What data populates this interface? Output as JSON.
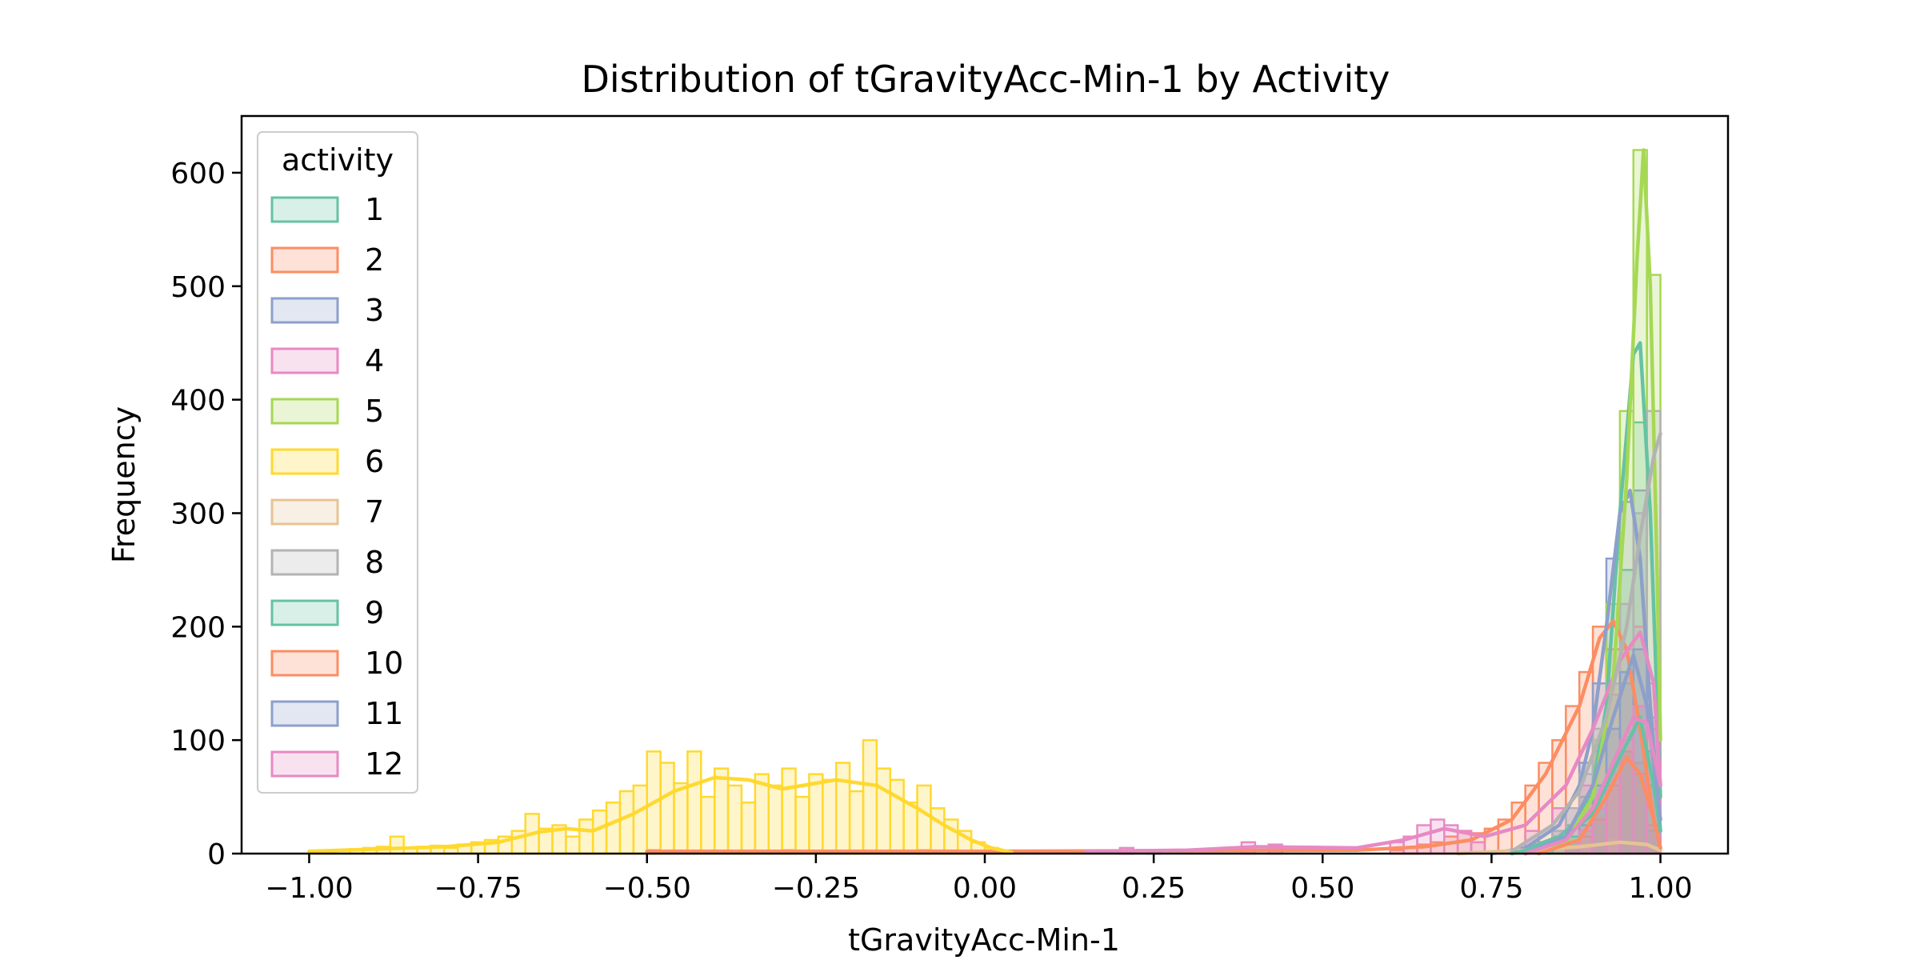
{
  "chart_data": {
    "type": "histogram",
    "title": "Distribution of tGravityAcc-Min-1 by Activity",
    "xlabel": "tGravityAcc-Min-1",
    "ylabel": "Frequency",
    "xlim": [
      -1.1,
      1.1
    ],
    "ylim": [
      0,
      650
    ],
    "xticks": [
      -1.0,
      -0.75,
      -0.5,
      -0.25,
      0.0,
      0.25,
      0.5,
      0.75,
      1.0
    ],
    "xtick_labels": [
      "−1.00",
      "−0.75",
      "−0.50",
      "−0.25",
      "0.00",
      "0.25",
      "0.50",
      "0.75",
      "1.00"
    ],
    "yticks": [
      0,
      100,
      200,
      300,
      400,
      500,
      600
    ],
    "ytick_labels": [
      "0",
      "100",
      "200",
      "300",
      "400",
      "500",
      "600"
    ],
    "element": "step",
    "kde": true,
    "bin_width": 0.02,
    "legend": {
      "title": "activity",
      "position": "upper-left",
      "entries": [
        "1",
        "2",
        "3",
        "4",
        "5",
        "6",
        "7",
        "8",
        "9",
        "10",
        "11",
        "12"
      ]
    },
    "series": [
      {
        "name": "1",
        "color": "#66c2a5",
        "bin_start": [
          0.78,
          0.8,
          0.82,
          0.84,
          0.86,
          0.88,
          0.9,
          0.92,
          0.94,
          0.96,
          0.98
        ],
        "counts": [
          2,
          5,
          10,
          15,
          25,
          50,
          90,
          150,
          250,
          380,
          120
        ],
        "kde": {
          "x": [
            0.75,
            0.8,
            0.85,
            0.88,
            0.9,
            0.92,
            0.94,
            0.96,
            0.97,
            0.985,
            1.0
          ],
          "y": [
            0,
            4,
            15,
            30,
            60,
            130,
            300,
            440,
            450,
            300,
            50
          ]
        }
      },
      {
        "name": "2",
        "color": "#fc8d62",
        "bin_start": [
          -0.5,
          -0.3,
          -0.1,
          0.6,
          0.62,
          0.64,
          0.66,
          0.68,
          0.7,
          0.72,
          0.74,
          0.76,
          0.78,
          0.8,
          0.82,
          0.84,
          0.86,
          0.88,
          0.9,
          0.92,
          0.94,
          0.96,
          0.98
        ],
        "counts": [
          3,
          3,
          3,
          3,
          5,
          8,
          10,
          15,
          20,
          18,
          22,
          30,
          45,
          60,
          80,
          100,
          130,
          160,
          200,
          180,
          150,
          80,
          20
        ],
        "kde": {
          "x": [
            -0.5,
            0.0,
            0.55,
            0.65,
            0.72,
            0.78,
            0.83,
            0.88,
            0.91,
            0.93,
            0.95,
            0.97,
            0.99,
            1.0
          ],
          "y": [
            2,
            2,
            3,
            6,
            12,
            30,
            70,
            130,
            190,
            205,
            180,
            110,
            30,
            5
          ]
        }
      },
      {
        "name": "3",
        "color": "#8da0cb",
        "bin_start": [
          0.8,
          0.82,
          0.84,
          0.86,
          0.88,
          0.9,
          0.92,
          0.94,
          0.96,
          0.98
        ],
        "counts": [
          5,
          10,
          20,
          40,
          80,
          150,
          260,
          310,
          320,
          120
        ],
        "kde": {
          "x": [
            0.75,
            0.8,
            0.85,
            0.88,
            0.9,
            0.92,
            0.94,
            0.955,
            0.97,
            0.985,
            1.0
          ],
          "y": [
            0,
            5,
            25,
            60,
            110,
            200,
            300,
            320,
            260,
            130,
            20
          ]
        }
      },
      {
        "name": "4",
        "color": "#e78ac3",
        "bin_start": [
          0.2,
          0.24,
          0.38,
          0.42,
          0.6,
          0.62,
          0.64,
          0.66,
          0.68,
          0.7,
          0.72,
          0.8,
          0.84,
          0.88,
          0.9,
          0.92,
          0.94,
          0.96,
          0.98
        ],
        "counts": [
          5,
          3,
          10,
          8,
          10,
          15,
          25,
          30,
          25,
          20,
          10,
          20,
          40,
          60,
          100,
          140,
          180,
          200,
          150
        ],
        "kde": {
          "x": [
            0.15,
            0.3,
            0.4,
            0.55,
            0.62,
            0.68,
            0.74,
            0.8,
            0.86,
            0.9,
            0.94,
            0.97,
            0.99,
            1.0
          ],
          "y": [
            2,
            3,
            6,
            5,
            12,
            22,
            15,
            25,
            60,
            110,
            170,
            195,
            150,
            60
          ]
        }
      },
      {
        "name": "5",
        "color": "#a6d854",
        "bin_start": [
          0.84,
          0.86,
          0.88,
          0.9,
          0.92,
          0.94,
          0.96,
          0.98
        ],
        "counts": [
          5,
          15,
          40,
          100,
          220,
          390,
          620,
          510
        ],
        "kde": {
          "x": [
            0.8,
            0.86,
            0.9,
            0.93,
            0.95,
            0.965,
            0.975,
            0.985,
            0.995,
            1.0
          ],
          "y": [
            0,
            10,
            50,
            150,
            330,
            520,
            620,
            500,
            250,
            100
          ]
        }
      },
      {
        "name": "6",
        "color": "#ffd92f",
        "bin_start": [
          -1.0,
          -0.98,
          -0.96,
          -0.94,
          -0.92,
          -0.9,
          -0.88,
          -0.86,
          -0.84,
          -0.82,
          -0.8,
          -0.78,
          -0.76,
          -0.74,
          -0.72,
          -0.7,
          -0.68,
          -0.66,
          -0.64,
          -0.62,
          -0.6,
          -0.58,
          -0.56,
          -0.54,
          -0.52,
          -0.5,
          -0.48,
          -0.46,
          -0.44,
          -0.42,
          -0.4,
          -0.38,
          -0.36,
          -0.34,
          -0.32,
          -0.3,
          -0.28,
          -0.26,
          -0.24,
          -0.22,
          -0.2,
          -0.18,
          -0.16,
          -0.14,
          -0.12,
          -0.1,
          -0.08,
          -0.06,
          -0.04,
          -0.02,
          0.0,
          0.02
        ],
        "counts": [
          2,
          2,
          3,
          4,
          5,
          6,
          15,
          5,
          6,
          7,
          5,
          8,
          10,
          12,
          15,
          20,
          35,
          22,
          25,
          15,
          30,
          38,
          45,
          55,
          60,
          90,
          80,
          62,
          90,
          50,
          75,
          60,
          45,
          70,
          60,
          75,
          50,
          70,
          65,
          80,
          55,
          100,
          75,
          65,
          45,
          60,
          40,
          30,
          20,
          10,
          5,
          2
        ],
        "kde": {
          "x": [
            -1.0,
            -0.9,
            -0.8,
            -0.72,
            -0.66,
            -0.62,
            -0.58,
            -0.52,
            -0.46,
            -0.4,
            -0.35,
            -0.3,
            -0.22,
            -0.16,
            -0.1,
            -0.06,
            -0.02,
            0.01,
            0.04
          ],
          "y": [
            2,
            4,
            6,
            10,
            19,
            22,
            20,
            35,
            55,
            67,
            65,
            57,
            65,
            60,
            40,
            25,
            12,
            5,
            1
          ]
        }
      },
      {
        "name": "7",
        "color": "#e5c494",
        "bin_start": [
          0.76,
          0.8,
          0.84,
          0.88,
          0.92,
          0.96
        ],
        "counts": [
          2,
          3,
          5,
          8,
          12,
          8
        ],
        "kde": {
          "x": [
            0.7,
            0.8,
            0.88,
            0.94,
            0.98,
            1.0
          ],
          "y": [
            0,
            3,
            6,
            10,
            8,
            3
          ]
        }
      },
      {
        "name": "8",
        "color": "#b3b3b3",
        "bin_start": [
          0.84,
          0.86,
          0.88,
          0.9,
          0.92,
          0.94,
          0.96,
          0.98
        ],
        "counts": [
          20,
          40,
          70,
          110,
          150,
          220,
          300,
          390
        ],
        "kde": {
          "x": [
            0.78,
            0.84,
            0.88,
            0.92,
            0.95,
            0.97,
            0.99,
            1.0
          ],
          "y": [
            2,
            25,
            55,
            120,
            200,
            280,
            350,
            370
          ]
        }
      },
      {
        "name": "9",
        "color": "#66c2a5",
        "bin_start": [
          0.82,
          0.86,
          0.9,
          0.94,
          0.96,
          0.98
        ],
        "counts": [
          5,
          15,
          40,
          90,
          130,
          60
        ],
        "kde": {
          "x": [
            0.78,
            0.85,
            0.9,
            0.94,
            0.97,
            0.99,
            1.0
          ],
          "y": [
            0,
            10,
            35,
            85,
            120,
            60,
            20
          ]
        }
      },
      {
        "name": "10",
        "color": "#fc8d62",
        "bin_start": [
          0.86,
          0.88,
          0.9,
          0.92,
          0.94,
          0.96,
          0.98
        ],
        "counts": [
          5,
          15,
          30,
          60,
          90,
          70,
          25
        ],
        "kde": {
          "x": [
            0.82,
            0.88,
            0.92,
            0.95,
            0.97,
            0.99,
            1.0
          ],
          "y": [
            0,
            12,
            50,
            85,
            70,
            30,
            5
          ]
        }
      },
      {
        "name": "11",
        "color": "#8da0cb",
        "bin_start": [
          0.86,
          0.88,
          0.9,
          0.92,
          0.94,
          0.96,
          0.98
        ],
        "counts": [
          10,
          25,
          60,
          110,
          160,
          180,
          90
        ],
        "kde": {
          "x": [
            0.8,
            0.86,
            0.9,
            0.93,
            0.96,
            0.98,
            1.0
          ],
          "y": [
            0,
            15,
            60,
            120,
            175,
            130,
            30
          ]
        }
      },
      {
        "name": "12",
        "color": "#e78ac3",
        "bin_start": [
          0.86,
          0.88,
          0.9,
          0.92,
          0.94,
          0.96,
          0.98
        ],
        "counts": [
          10,
          20,
          40,
          70,
          100,
          130,
          110
        ],
        "kde": {
          "x": [
            0.8,
            0.86,
            0.9,
            0.93,
            0.96,
            0.98,
            1.0
          ],
          "y": [
            0,
            12,
            40,
            80,
            120,
            115,
            60
          ]
        }
      }
    ]
  }
}
